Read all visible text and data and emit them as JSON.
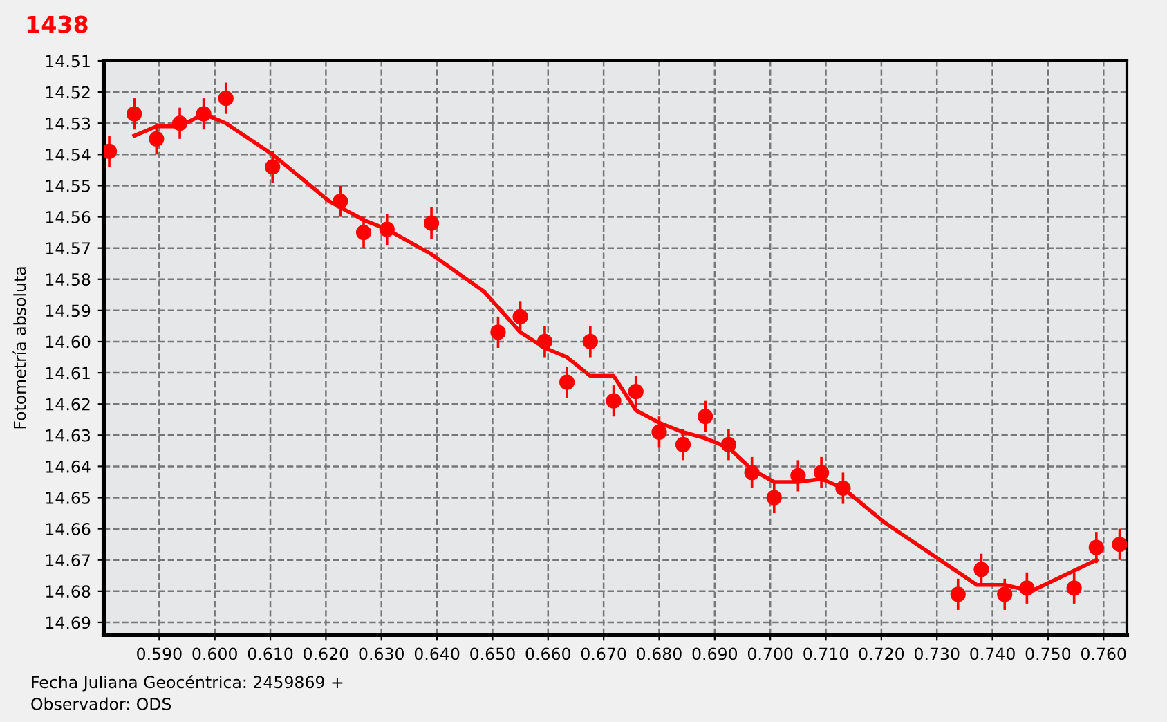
{
  "chart_data": {
    "type": "scatter",
    "title": "1438",
    "ylabel": "Fotometría absoluta",
    "annotations": [
      "Fecha Juliana Geocéntrica: 2459869 +",
      "Observador: ODS"
    ],
    "xlim": [
      0.58,
      0.7642
    ],
    "ylim": [
      14.694,
      14.51
    ],
    "xticks": [
      {
        "value": 0.59,
        "label": "0.590"
      },
      {
        "value": 0.6,
        "label": "0.600"
      },
      {
        "value": 0.61,
        "label": "0.610"
      },
      {
        "value": 0.62,
        "label": "0.620"
      },
      {
        "value": 0.63,
        "label": "0.630"
      },
      {
        "value": 0.64,
        "label": "0.640"
      },
      {
        "value": 0.65,
        "label": "0.650"
      },
      {
        "value": 0.66,
        "label": "0.660"
      },
      {
        "value": 0.67,
        "label": "0.670"
      },
      {
        "value": 0.68,
        "label": "0.680"
      },
      {
        "value": 0.69,
        "label": "0.690"
      },
      {
        "value": 0.7,
        "label": "0.700"
      },
      {
        "value": 0.71,
        "label": "0.710"
      },
      {
        "value": 0.72,
        "label": "0.720"
      },
      {
        "value": 0.73,
        "label": "0.730"
      },
      {
        "value": 0.74,
        "label": "0.740"
      },
      {
        "value": 0.75,
        "label": "0.750"
      },
      {
        "value": 0.76,
        "label": "0.760"
      }
    ],
    "yticks": [
      14.51,
      14.52,
      14.53,
      14.54,
      14.55,
      14.56,
      14.57,
      14.58,
      14.59,
      {
        "value": 14.6,
        "label": "14.60"
      },
      14.61,
      14.62,
      14.63,
      14.64,
      14.65,
      14.66,
      14.67,
      14.68,
      14.69
    ],
    "grid": true,
    "series": [
      {
        "color": "#ff0000",
        "marker": "circle",
        "x": [
          0.581,
          0.5855,
          0.5895,
          0.5937,
          0.598,
          0.602,
          0.6104,
          0.6226,
          0.6268,
          0.631,
          0.639,
          0.651,
          0.655,
          0.6594,
          0.6634,
          0.6676,
          0.6718,
          0.6758,
          0.68,
          0.6843,
          0.6883,
          0.6925,
          0.6967,
          0.7007,
          0.705,
          0.7092,
          0.7131,
          0.7338,
          0.738,
          0.7422,
          0.7462,
          0.7547,
          0.7587,
          0.7629
        ],
        "values": [
          14.539,
          14.527,
          14.535,
          14.53,
          14.527,
          14.522,
          14.544,
          14.555,
          14.565,
          14.564,
          14.562,
          14.597,
          14.592,
          14.6,
          14.613,
          14.6,
          14.619,
          14.616,
          14.629,
          14.633,
          14.624,
          14.633,
          14.642,
          14.65,
          14.643,
          14.642,
          14.647,
          14.681,
          14.673,
          14.681,
          14.679,
          14.679,
          14.666,
          14.665
        ],
        "errors": [
          0.005,
          0.005,
          0.005,
          0.005,
          0.005,
          0.005,
          0.005,
          0.005,
          0.005,
          0.005,
          0.005,
          0.005,
          0.005,
          0.005,
          0.005,
          0.005,
          0.005,
          0.005,
          0.005,
          0.005,
          0.005,
          0.005,
          0.005,
          0.005,
          0.005,
          0.005,
          0.005,
          0.005,
          0.005,
          0.005,
          0.005,
          0.005,
          0.005,
          0.005
        ]
      },
      {
        "type": "line",
        "color": "#ff0000",
        "marker": "none",
        "line_style": "solid",
        "x": [
          0.5855,
          0.5895,
          0.5937,
          0.598,
          0.602,
          0.6104,
          0.6206,
          0.6268,
          0.631,
          0.639,
          0.6485,
          0.655,
          0.6594,
          0.6634,
          0.6676,
          0.6718,
          0.6758,
          0.68,
          0.6843,
          0.6883,
          0.6925,
          0.6967,
          0.7007,
          0.705,
          0.7092,
          0.7131,
          0.7206,
          0.7372,
          0.7422,
          0.747,
          0.7587
        ],
        "values": [
          14.534,
          14.531,
          14.531,
          14.527,
          14.53,
          14.54,
          14.555,
          14.561,
          14.564,
          14.572,
          14.584,
          14.597,
          14.602,
          14.605,
          14.611,
          14.611,
          14.622,
          14.626,
          14.629,
          14.631,
          14.634,
          14.641,
          14.645,
          14.645,
          14.644,
          14.647,
          14.658,
          14.678,
          14.678,
          14.68,
          14.67
        ]
      }
    ]
  }
}
